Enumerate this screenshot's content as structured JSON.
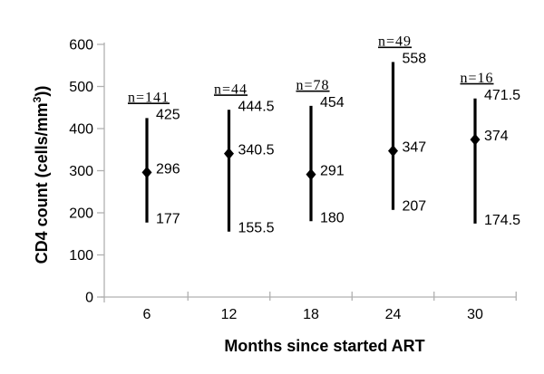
{
  "chart_data": {
    "type": "line",
    "subtype": "median-with-range",
    "description": "Vertical range bars (min to max) with diamond marker at the median CD4 count for each time point since starting ART",
    "title": "",
    "xlabel": "Months since started ART",
    "ylabel": "CD4 count (cells/mm3))",
    "ylabel_prefix": "CD4 count (cells/mm",
    "ylabel_sup": "3",
    "ylabel_suffix": "))",
    "ylim": [
      0,
      600
    ],
    "y_ticks": [
      0,
      100,
      200,
      300,
      400,
      500,
      600
    ],
    "grid": "off",
    "legend": "none",
    "categories": [
      "6",
      "12",
      "18",
      "24",
      "30"
    ],
    "series": [
      {
        "category": "6",
        "n_label": "n=141",
        "max": 425,
        "median": 296,
        "min": 177
      },
      {
        "category": "12",
        "n_label": "n=44",
        "max": 444.5,
        "median": 340.5,
        "min": 155.5
      },
      {
        "category": "18",
        "n_label": "n=78",
        "max": 454,
        "median": 291,
        "min": 180
      },
      {
        "category": "24",
        "n_label": "n=49",
        "max": 558,
        "median": 347,
        "min": 207
      },
      {
        "category": "30",
        "n_label": "n=16",
        "max": 471.5,
        "median": 374,
        "min": 174.5
      }
    ],
    "colors": {
      "range_line": "#000000",
      "marker": "#000000",
      "axis": "#b0b0b0",
      "text": "#000000",
      "background": "#ffffff"
    }
  }
}
